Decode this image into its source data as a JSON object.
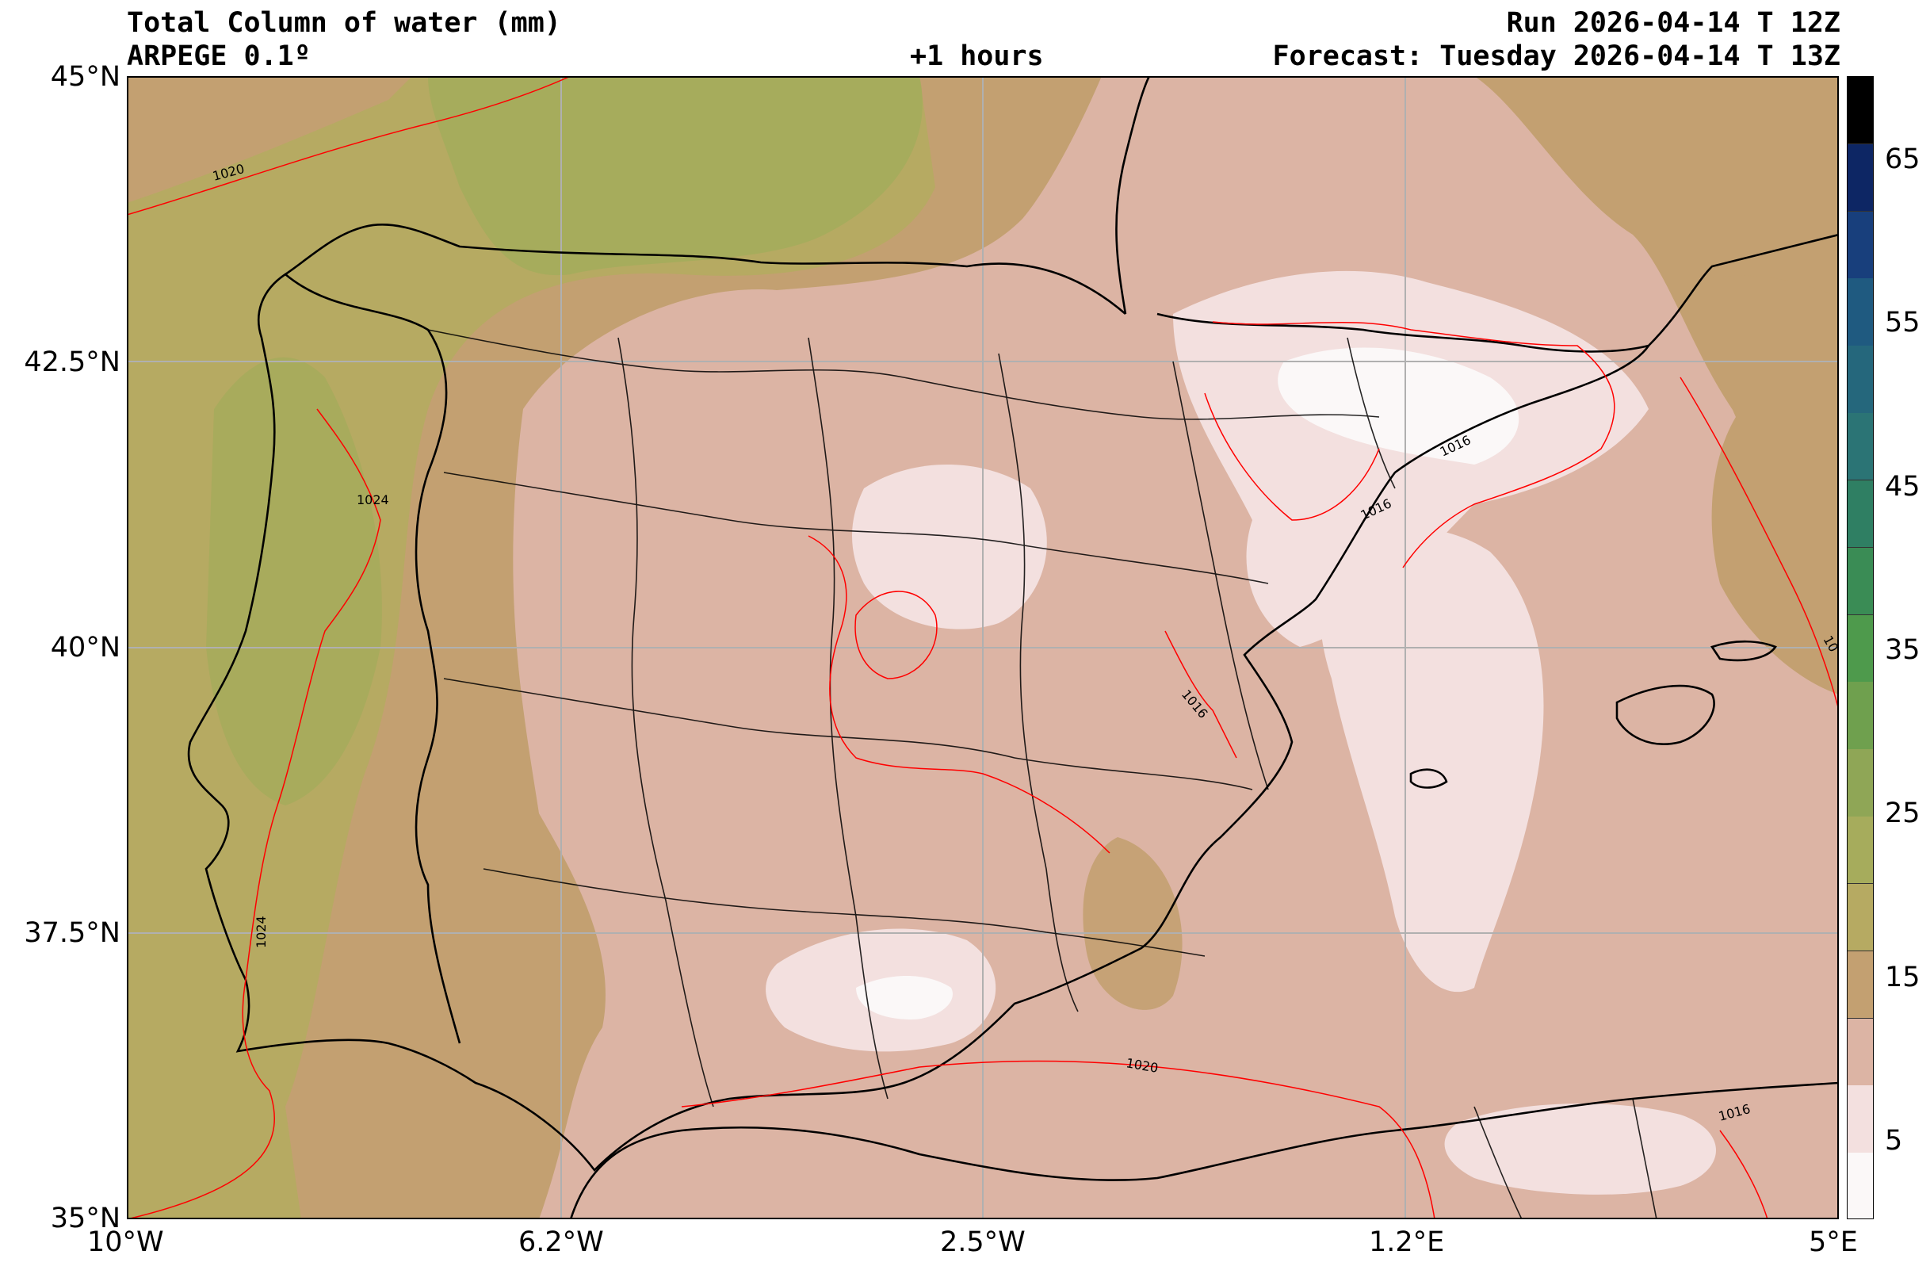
{
  "header": {
    "title": "Total Column of water (mm)",
    "model": "ARPEGE 0.1º",
    "lead": "+1 hours",
    "run": "Run 2026-04-14 T 12Z",
    "forecast": "Forecast: Tuesday 2026-04-14 T 13Z"
  },
  "axes": {
    "lon_labels": [
      "10°W",
      "6.2°W",
      "2.5°W",
      "1.2°E",
      "5°E"
    ],
    "lat_labels": [
      "45°N",
      "42.5°N",
      "40°N",
      "37.5°N",
      "35°N"
    ]
  },
  "colorbar": {
    "ticks": [
      "65",
      "55",
      "45",
      "35",
      "25",
      "15",
      "5"
    ],
    "colors": [
      "#fbf8f8",
      "#f3e0df",
      "#dcb4a4",
      "#c3a071",
      "#b6aa62",
      "#a6ac5c",
      "#8fa656",
      "#6fa04e",
      "#4e9a4c",
      "#3a8c55",
      "#2f7f63",
      "#2b7475",
      "#25677c",
      "#1f5a80",
      "#183f7c",
      "#0d2664",
      "#000000"
    ]
  },
  "contours": {
    "labels": [
      "1020",
      "1024",
      "1016",
      "1016",
      "1016",
      "1024",
      "1020",
      "1016",
      "10"
    ]
  },
  "colors": {
    "land_brown": "#c3a071",
    "pink": "#dcb4a4",
    "light": "#f3e0df",
    "olive": "#b6aa62",
    "green": "#a6ac5c",
    "isobar": "#ff0000"
  }
}
